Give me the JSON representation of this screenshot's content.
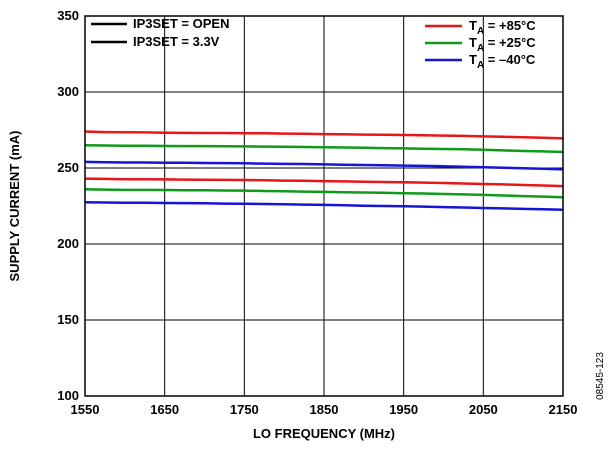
{
  "chart_data": {
    "type": "line",
    "xlabel": "LO FREQUENCY (MHz)",
    "ylabel": "SUPPLY CURRENT (mA)",
    "xlim": [
      1550,
      2150
    ],
    "ylim": [
      100,
      350
    ],
    "xticks": [
      "1550",
      "1650",
      "1750",
      "1850",
      "1950",
      "2050",
      "2150"
    ],
    "yticks": [
      "100",
      "150",
      "200",
      "250",
      "300",
      "350"
    ],
    "grid": true,
    "figure_id": "08545-123",
    "legend_style": [
      {
        "label": "IP3SET = OPEN"
      },
      {
        "label": "IP3SET = 3.3V"
      }
    ],
    "legend_temp": [
      {
        "label": "T",
        "sub": "A",
        "suffix": " = +85°C",
        "color": "#e8151b"
      },
      {
        "label": "T",
        "sub": "A",
        "suffix": " = +25°C",
        "color": "#0f9a1a"
      },
      {
        "label": "T",
        "sub": "A",
        "suffix": " = –40°C",
        "color": "#1515d8"
      }
    ],
    "x": [
      1550,
      1575,
      1600,
      1625,
      1650,
      1675,
      1700,
      1725,
      1750,
      1775,
      1800,
      1825,
      1850,
      1875,
      1900,
      1925,
      1950,
      1975,
      2000,
      2025,
      2050,
      2075,
      2100,
      2125,
      2150
    ],
    "series": [
      {
        "color": "#e8151b",
        "values": [
          274,
          273.6,
          273.5,
          273.4,
          273.2,
          273.1,
          273,
          273,
          272.9,
          272.8,
          272.6,
          272.5,
          272.3,
          272.2,
          272,
          271.9,
          271.7,
          271.5,
          271.3,
          271.1,
          270.8,
          270.5,
          270.2,
          269.9,
          269.5
        ]
      },
      {
        "color": "#0f9a1a",
        "values": [
          265,
          264.8,
          264.6,
          264.6,
          264.5,
          264.4,
          264.4,
          264.3,
          264.2,
          264.1,
          264,
          263.8,
          263.6,
          263.5,
          263.3,
          263.1,
          262.9,
          262.7,
          262.5,
          262.3,
          262,
          261.6,
          261.2,
          260.9,
          260.5
        ]
      },
      {
        "color": "#1515d8",
        "values": [
          254,
          253.8,
          253.6,
          253.6,
          253.5,
          253.4,
          253.3,
          253.2,
          253.1,
          252.9,
          252.7,
          252.6,
          252.4,
          252.2,
          252,
          251.8,
          251.6,
          251.4,
          251.1,
          250.8,
          250.5,
          250.2,
          249.8,
          249.5,
          249.1
        ]
      },
      {
        "color": "#e8151b",
        "values": [
          243,
          242.8,
          242.6,
          242.6,
          242.5,
          242.4,
          242.3,
          242.2,
          242.1,
          241.9,
          241.7,
          241.6,
          241.4,
          241.2,
          241,
          240.8,
          240.6,
          240.4,
          240.1,
          239.8,
          239.5,
          239.2,
          238.8,
          238.5,
          238.1
        ]
      },
      {
        "color": "#0f9a1a",
        "values": [
          236,
          235.8,
          235.6,
          235.6,
          235.5,
          235.4,
          235.3,
          235.2,
          235.1,
          234.9,
          234.7,
          234.5,
          234.3,
          234.1,
          233.9,
          233.7,
          233.4,
          233.2,
          232.9,
          232.6,
          232.3,
          231.9,
          231.5,
          231.2,
          230.8
        ]
      },
      {
        "color": "#1515d8",
        "values": [
          227.5,
          227.3,
          227.1,
          227.1,
          227,
          226.9,
          226.8,
          226.6,
          226.5,
          226.3,
          226.1,
          225.9,
          225.7,
          225.5,
          225.2,
          225,
          224.8,
          224.6,
          224.3,
          224,
          223.7,
          223.4,
          223.1,
          222.8,
          222.5
        ]
      }
    ]
  }
}
